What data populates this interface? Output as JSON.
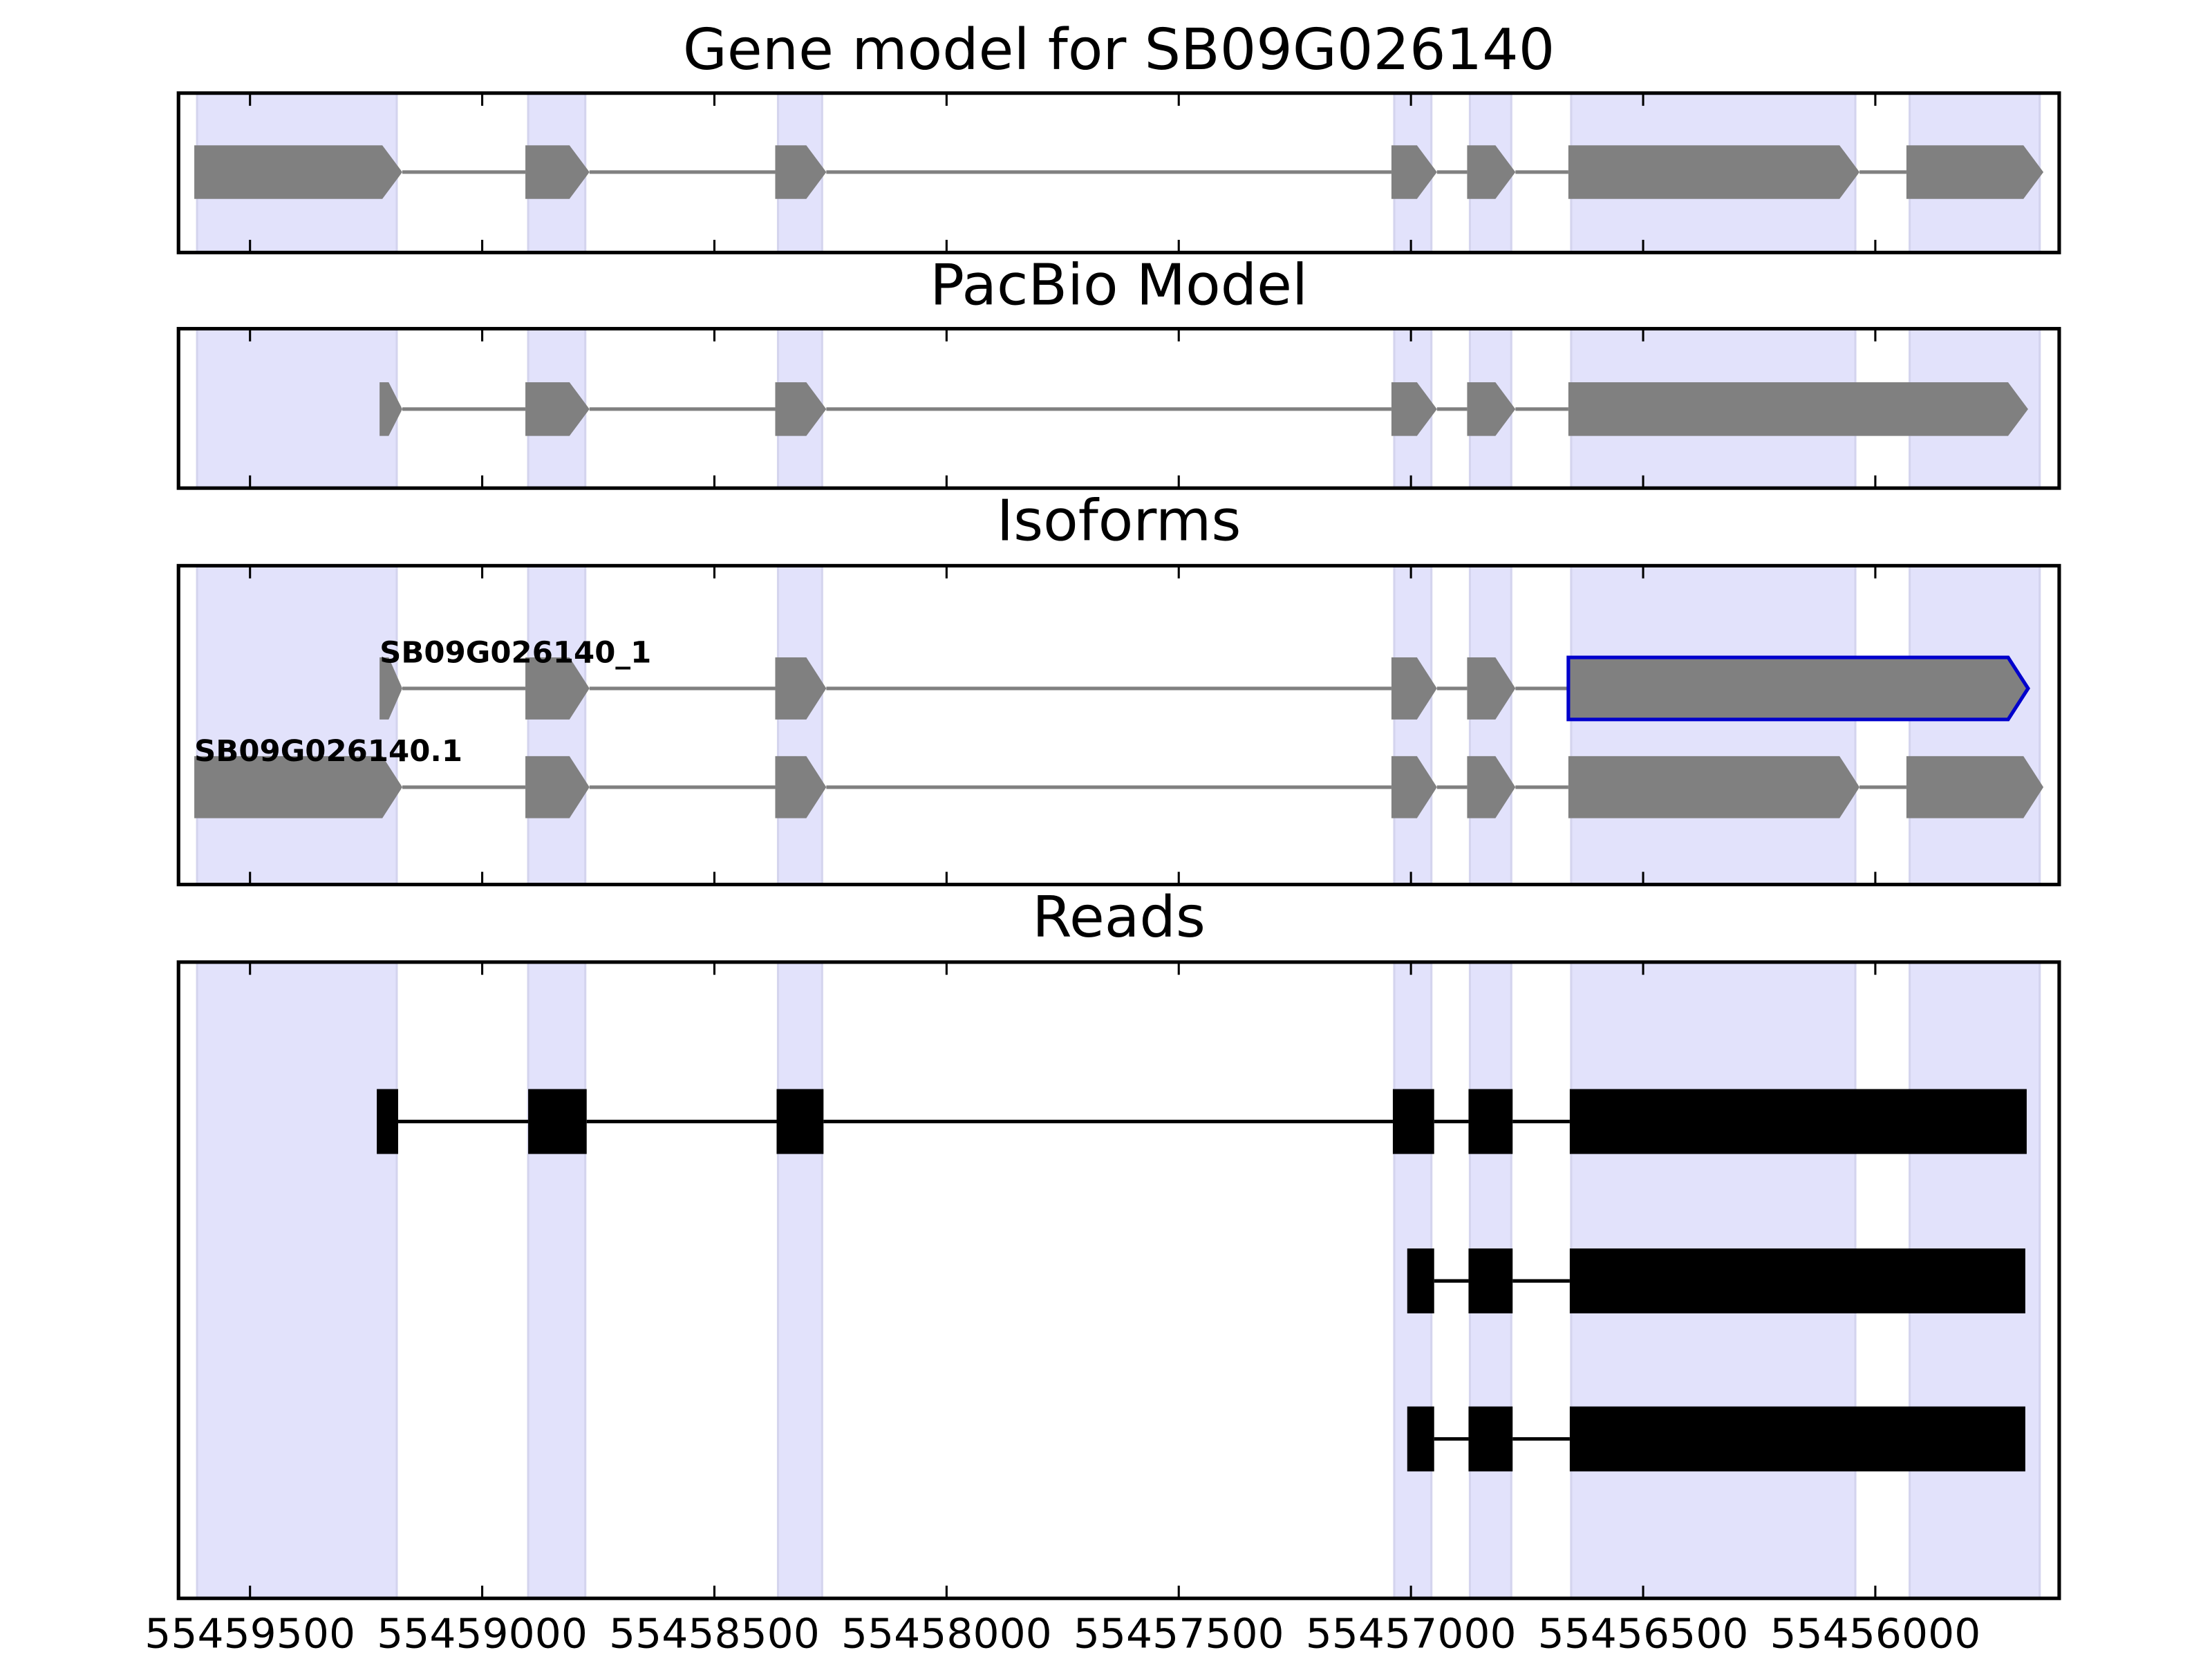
{
  "chart_data": {
    "type": "genetracks",
    "xlim": [
      55459654,
      55455604
    ],
    "xticks": [
      55459500,
      55459000,
      55458500,
      55458000,
      55457500,
      55457000,
      55456500,
      55456000
    ],
    "region_color": "#e2e2fb",
    "exon_regions": [
      [
        55459614,
        55459184
      ],
      [
        55458901,
        55458778
      ],
      [
        55458363,
        55458268
      ],
      [
        55457036,
        55456956
      ],
      [
        55456873,
        55456784
      ],
      [
        55456655,
        55456043
      ],
      [
        55455926,
        55455646
      ]
    ],
    "panels": [
      {
        "title": "Gene model for SB09G026140",
        "shape": "arrow",
        "color": "#808080",
        "tracks": [
          {
            "exons": [
              [
                55459620,
                55459172
              ],
              [
                55458907,
                55458769
              ],
              [
                55458369,
                55458259
              ],
              [
                55457042,
                55456944
              ],
              [
                55456879,
                55456775
              ],
              [
                55456661,
                55456034
              ],
              [
                55455933,
                55455638
              ]
            ]
          }
        ]
      },
      {
        "title": "PacBio Model",
        "shape": "arrow",
        "color": "#808080",
        "tracks": [
          {
            "exons": [
              [
                55459221,
                55459172
              ],
              [
                55458907,
                55458769
              ],
              [
                55458369,
                55458259
              ],
              [
                55457042,
                55456944
              ],
              [
                55456879,
                55456775
              ],
              [
                55456661,
                55455671
              ]
            ]
          }
        ]
      },
      {
        "title": "Isoforms",
        "shape": "arrow",
        "color": "#808080",
        "tracks": [
          {
            "name": "SB09G026140_1",
            "outline_color": "#0000cc",
            "outlined_exon": 5,
            "exons": [
              [
                55459221,
                55459172
              ],
              [
                55458907,
                55458769
              ],
              [
                55458369,
                55458259
              ],
              [
                55457042,
                55456944
              ],
              [
                55456879,
                55456775
              ],
              [
                55456661,
                55455671
              ]
            ]
          },
          {
            "name": "SB09G026140.1",
            "exons": [
              [
                55459620,
                55459172
              ],
              [
                55458907,
                55458769
              ],
              [
                55458369,
                55458259
              ],
              [
                55457042,
                55456944
              ],
              [
                55456879,
                55456775
              ],
              [
                55456661,
                55456034
              ],
              [
                55455933,
                55455638
              ]
            ]
          }
        ]
      },
      {
        "title": "Reads",
        "shape": "box",
        "color": "#000000",
        "tracks": [
          {
            "exons": [
              [
                55459227,
                55459181
              ],
              [
                55458901,
                55458775
              ],
              [
                55458366,
                55458265
              ],
              [
                55457039,
                55456950
              ],
              [
                55456876,
                55456781
              ],
              [
                55456658,
                55455674
              ]
            ]
          },
          {
            "exons": [
              [
                55457008,
                55456950
              ],
              [
                55456876,
                55456781
              ],
              [
                55456658,
                55455677
              ]
            ]
          },
          {
            "exons": [
              [
                55457008,
                55456950
              ],
              [
                55456876,
                55456781
              ],
              [
                55456658,
                55455677
              ]
            ]
          }
        ]
      }
    ]
  }
}
